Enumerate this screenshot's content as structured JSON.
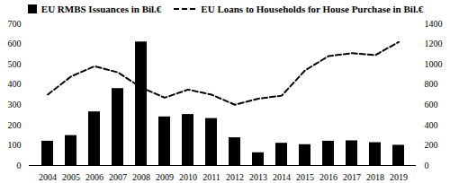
{
  "chart_data": {
    "type": "bar",
    "categories": [
      "2004",
      "2005",
      "2006",
      "2007",
      "2008",
      "2009",
      "2010",
      "2011",
      "2012",
      "2013",
      "2014",
      "2015",
      "2016",
      "2017",
      "2018",
      "2019"
    ],
    "series": [
      {
        "name": "EU RMBS Issuances in Bil.€",
        "type": "bar",
        "color": "#000000",
        "values": [
          120,
          148,
          265,
          380,
          610,
          240,
          252,
          232,
          137,
          63,
          110,
          103,
          120,
          122,
          113,
          100
        ]
      },
      {
        "name": "EU Loans to Households for House Purchase in Bil.€",
        "type": "line",
        "color": "#000000",
        "line_style": "dashed",
        "axis": "y2",
        "values": [
          700,
          880,
          980,
          920,
          770,
          670,
          750,
          700,
          600,
          660,
          690,
          940,
          1080,
          1110,
          1090,
          1220
        ]
      }
    ],
    "ylim": [
      0,
      700
    ],
    "yticks": [
      0,
      100,
      200,
      300,
      400,
      500,
      600,
      700
    ],
    "y2lim": [
      0,
      1400
    ],
    "y2ticks": [
      0,
      200,
      400,
      600,
      800,
      1000,
      1200,
      1400
    ],
    "legend": "top"
  }
}
